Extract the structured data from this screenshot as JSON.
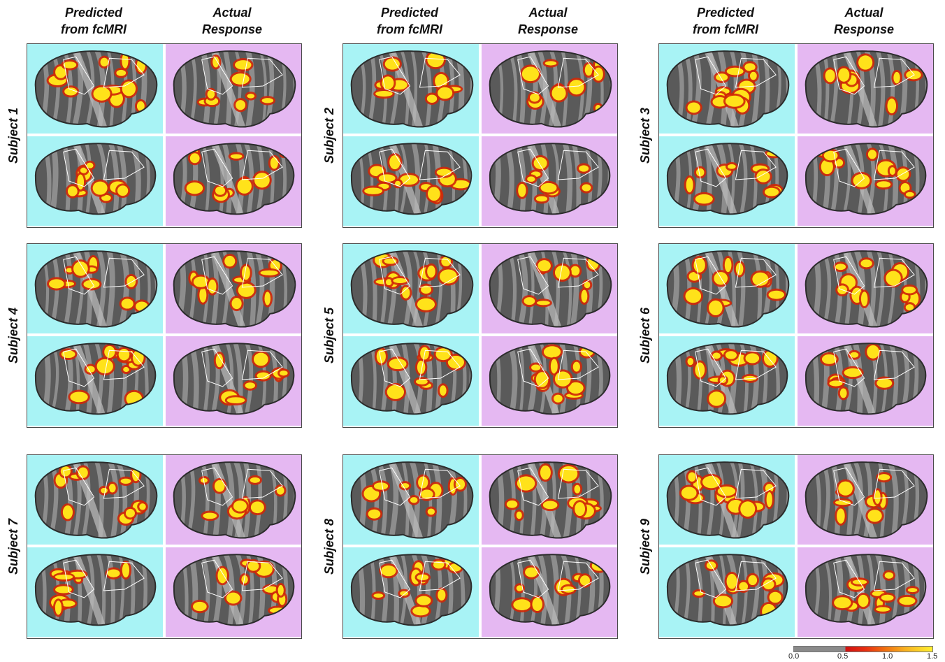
{
  "columns": {
    "predicted": "Predicted\nfrom fcMRI",
    "actual": "Actual\nResponse"
  },
  "subjects": [
    "Subject 1",
    "Subject 2",
    "Subject 3",
    "Subject 4",
    "Subject 5",
    "Subject 6",
    "Subject 7",
    "Subject 8",
    "Subject 9"
  ],
  "colorbar": {
    "ticks": [
      "0.0",
      "0.5",
      "1.0",
      "1.5"
    ],
    "colors": [
      "#8a8a8a",
      "#d01010",
      "#f07010",
      "#fff030"
    ]
  },
  "panel_colors": {
    "predicted": "#a8f3f5",
    "actual": "#e5b8f2"
  }
}
